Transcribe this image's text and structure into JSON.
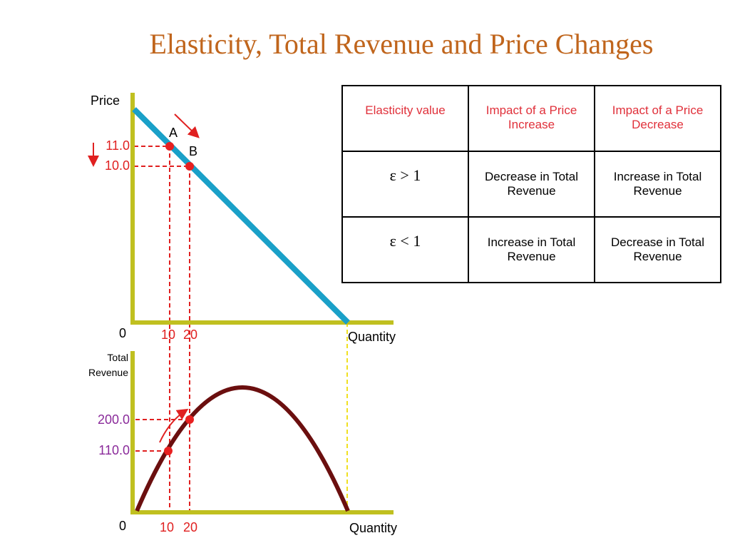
{
  "title": "Elasticity, Total Revenue and Price Changes",
  "price_chart": {
    "y_label": "Price",
    "y_values": [
      "11.0",
      "10.0"
    ],
    "points": [
      "A",
      "B"
    ],
    "origin": "0",
    "x_values": [
      "10",
      "20"
    ],
    "x_label": "Quantity"
  },
  "revenue_chart": {
    "y_label": "Total Revenue",
    "y_values": [
      "200.0",
      "110.0"
    ],
    "origin": "0",
    "x_values": [
      "10",
      "20"
    ],
    "x_label": "Quantity"
  },
  "table": {
    "header": [
      "Elasticity value",
      "Impact of a Price Increase",
      "Impact of a Price Decrease"
    ],
    "rows": [
      [
        "ε > 1",
        "Decrease in Total Revenue",
        "Increase in Total Revenue"
      ],
      [
        "ε < 1",
        "Increase in Total Revenue",
        "Decrease in Total Revenue"
      ]
    ]
  }
}
